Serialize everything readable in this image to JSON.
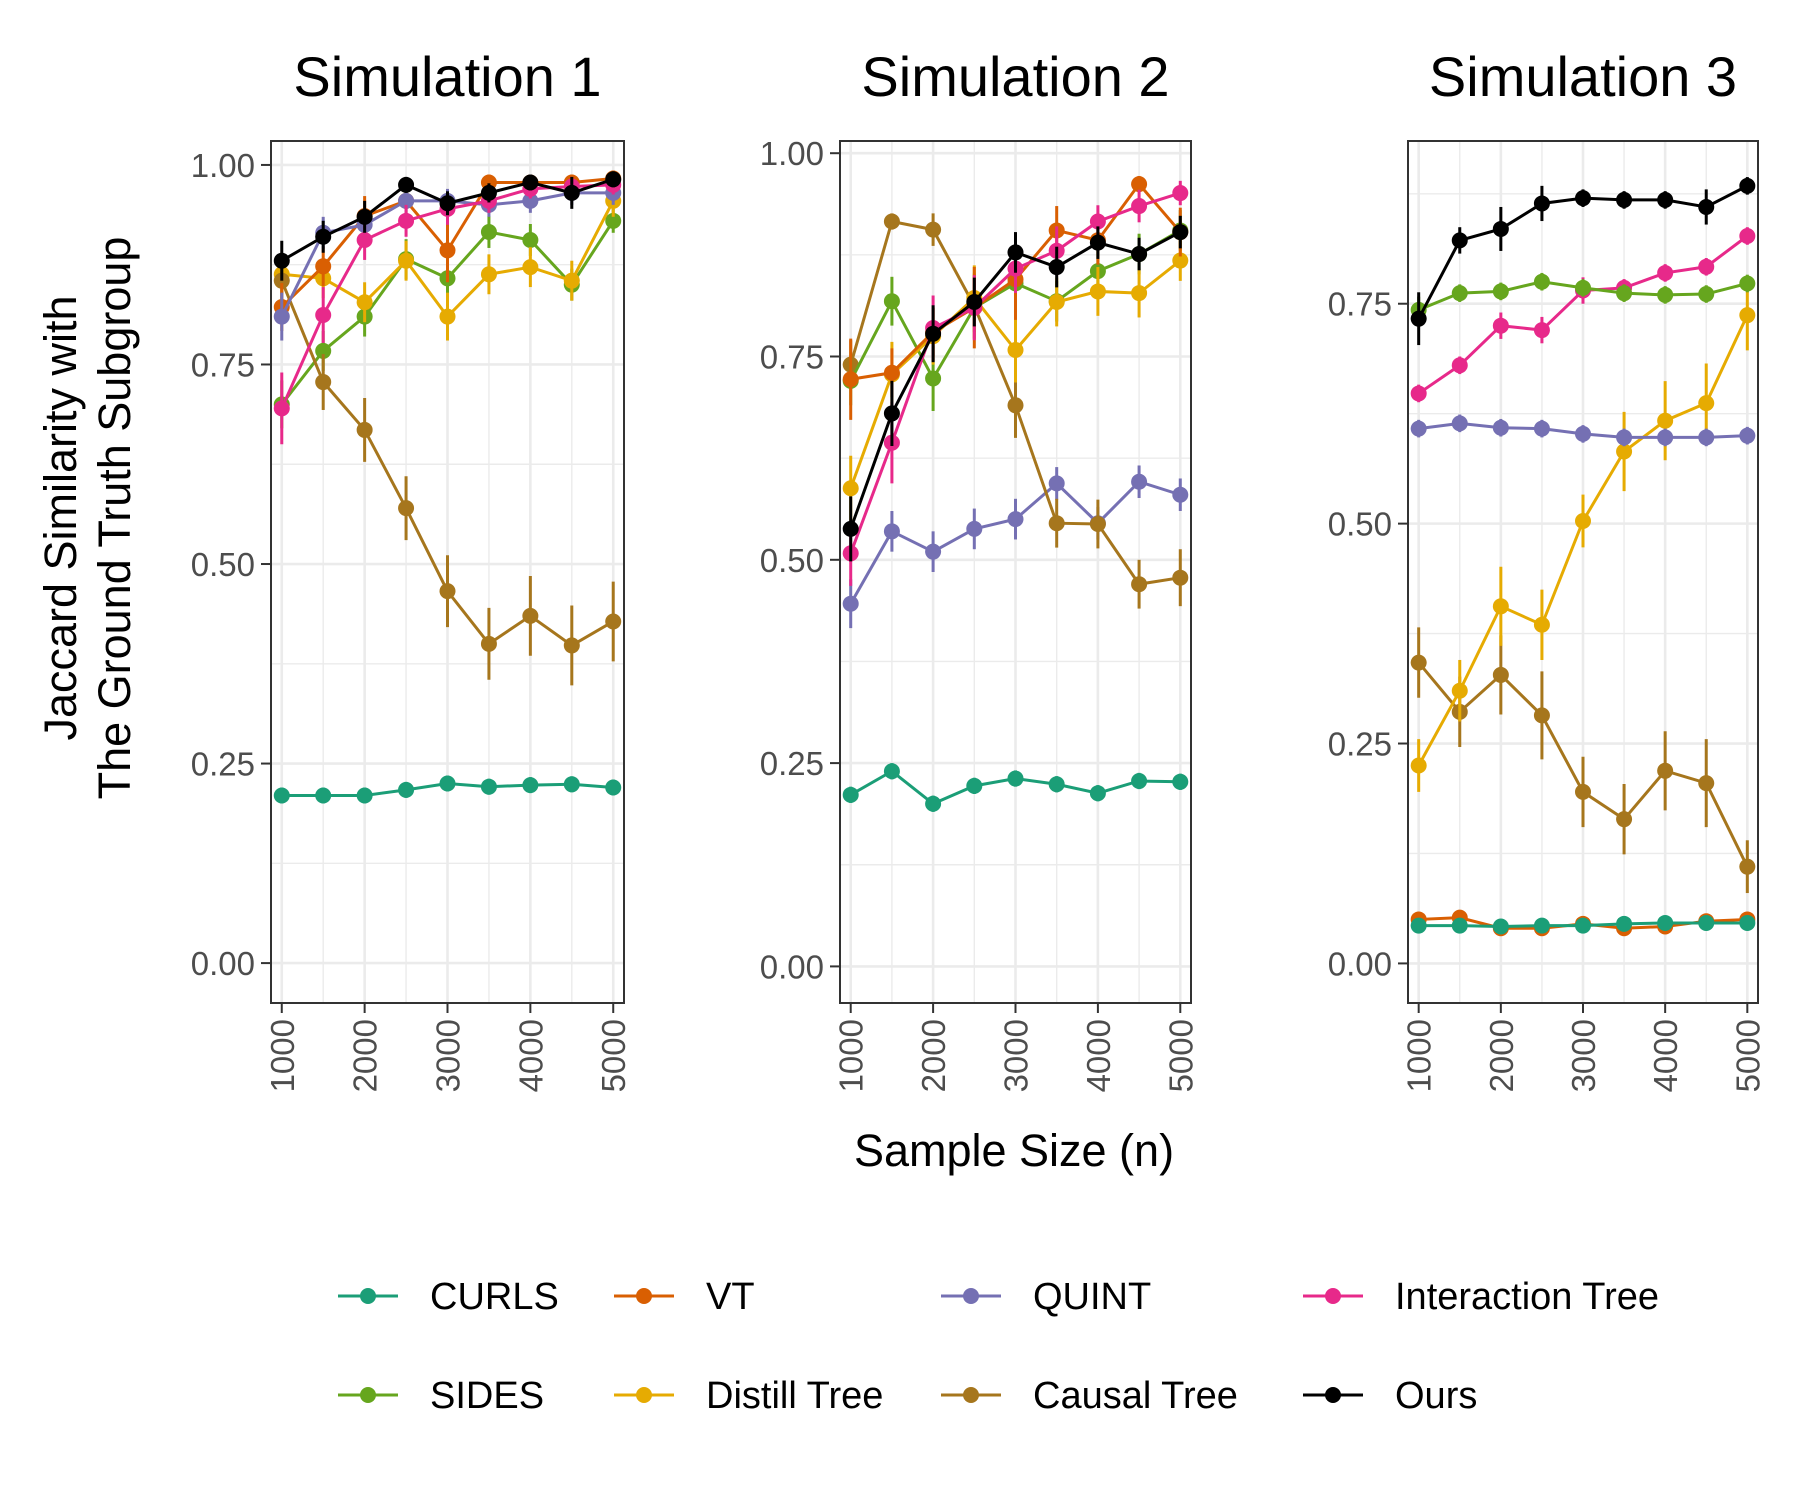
{
  "chart_data": {
    "type": "line",
    "x": [
      1000,
      1500,
      2000,
      2500,
      3000,
      3500,
      4000,
      4500,
      5000
    ],
    "x_tick_labels": [
      "1000",
      "2000",
      "3000",
      "4000",
      "5000"
    ],
    "xlabel": "Sample Size (n)",
    "ylabel_line1": "Jaccard Similarity with",
    "ylabel_line2": "The Ground Truth Subgroup",
    "colors": {
      "CURLS": "#1b9e77",
      "VT": "#d95f02",
      "QUINT": "#7570b3",
      "Interaction Tree": "#e7298a",
      "SIDES": "#66a61e",
      "Distill Tree": "#e6ab02",
      "Causal Tree": "#a6761d",
      "Ours": "#000000"
    },
    "legend": [
      "CURLS",
      "VT",
      "QUINT",
      "Interaction Tree",
      "SIDES",
      "Distill Tree",
      "Causal Tree",
      "Ours"
    ],
    "panels": [
      {
        "title": "Simulation 1",
        "ylim": [
          -0.05,
          1.03
        ],
        "y_ticks": [
          0.0,
          0.25,
          0.5,
          0.75,
          1.0
        ],
        "y_tick_labels": [
          "0.00",
          "0.25",
          "0.50",
          "0.75",
          "1.00"
        ],
        "series": [
          {
            "name": "CURLS",
            "values": [
              0.21,
              0.21,
              0.21,
              0.217,
              0.225,
              0.221,
              0.223,
              0.224,
              0.22
            ],
            "errors": [
              0.01,
              0.01,
              0.01,
              0.01,
              0.01,
              0.01,
              0.01,
              0.01,
              0.01
            ]
          },
          {
            "name": "SIDES",
            "values": [
              0.7,
              0.767,
              0.81,
              0.882,
              0.858,
              0.916,
              0.906,
              0.85,
              0.93
            ],
            "errors": [
              0.03,
              0.025,
              0.025,
              0.025,
              0.025,
              0.02,
              0.02,
              0.02,
              0.015
            ]
          },
          {
            "name": "Distill Tree",
            "values": [
              0.863,
              0.858,
              0.828,
              0.88,
              0.81,
              0.863,
              0.872,
              0.855,
              0.955
            ],
            "errors": [
              0.025,
              0.025,
              0.025,
              0.025,
              0.03,
              0.025,
              0.025,
              0.025,
              0.02
            ]
          },
          {
            "name": "Causal Tree",
            "values": [
              0.855,
              0.728,
              0.668,
              0.57,
              0.466,
              0.4,
              0.435,
              0.398,
              0.428
            ],
            "errors": [
              0.03,
              0.035,
              0.04,
              0.04,
              0.045,
              0.045,
              0.05,
              0.05,
              0.05
            ]
          },
          {
            "name": "VT",
            "values": [
              0.822,
              0.873,
              0.936,
              0.955,
              0.893,
              0.978,
              0.978,
              0.978,
              0.983
            ],
            "errors": [
              0.03,
              0.025,
              0.025,
              0.02,
              0.04,
              0.01,
              0.01,
              0.01,
              0.01
            ]
          },
          {
            "name": "QUINT",
            "values": [
              0.81,
              0.915,
              0.925,
              0.955,
              0.955,
              0.95,
              0.955,
              0.965,
              0.965
            ],
            "errors": [
              0.03,
              0.02,
              0.02,
              0.015,
              0.015,
              0.015,
              0.015,
              0.015,
              0.015
            ]
          },
          {
            "name": "Interaction Tree",
            "values": [
              0.695,
              0.812,
              0.906,
              0.93,
              0.945,
              0.955,
              0.97,
              0.973,
              0.975
            ],
            "errors": [
              0.045,
              0.035,
              0.025,
              0.02,
              0.02,
              0.015,
              0.012,
              0.012,
              0.012
            ]
          },
          {
            "name": "Ours",
            "values": [
              0.88,
              0.91,
              0.935,
              0.975,
              0.952,
              0.965,
              0.978,
              0.965,
              0.982
            ],
            "errors": [
              0.025,
              0.02,
              0.02,
              0.01,
              0.015,
              0.012,
              0.01,
              0.02,
              0.01
            ]
          }
        ]
      },
      {
        "title": "Simulation 2",
        "ylim": [
          -0.045,
          1.015
        ],
        "y_ticks": [
          0.0,
          0.25,
          0.5,
          0.75,
          1.0
        ],
        "y_tick_labels": [
          "0.00",
          "0.25",
          "0.50",
          "0.75",
          "1.00"
        ],
        "series": [
          {
            "name": "CURLS",
            "values": [
              0.211,
              0.24,
              0.2,
              0.222,
              0.231,
              0.224,
              0.213,
              0.228,
              0.227
            ],
            "errors": [
              0.01,
              0.01,
              0.01,
              0.01,
              0.01,
              0.01,
              0.01,
              0.01,
              0.01
            ]
          },
          {
            "name": "QUINT",
            "values": [
              0.446,
              0.535,
              0.51,
              0.538,
              0.55,
              0.594,
              0.545,
              0.596,
              0.58
            ],
            "errors": [
              0.03,
              0.025,
              0.025,
              0.025,
              0.025,
              0.02,
              0.02,
              0.02,
              0.02
            ]
          },
          {
            "name": "Causal Tree",
            "values": [
              0.74,
              0.916,
              0.906,
              0.812,
              0.69,
              0.545,
              0.544,
              0.47,
              0.478
            ],
            "errors": [
              0.03,
              0.01,
              0.02,
              0.04,
              0.04,
              0.03,
              0.03,
              0.03,
              0.035
            ]
          },
          {
            "name": "SIDES",
            "values": [
              0.72,
              0.818,
              0.723,
              0.81,
              0.84,
              0.818,
              0.855,
              0.876,
              0.905
            ],
            "errors": [
              0.03,
              0.03,
              0.04,
              0.03,
              0.03,
              0.025,
              0.025,
              0.025,
              0.025
            ]
          },
          {
            "name": "Distill Tree",
            "values": [
              0.588,
              0.728,
              0.775,
              0.822,
              0.758,
              0.817,
              0.83,
              0.828,
              0.868
            ],
            "errors": [
              0.04,
              0.04,
              0.035,
              0.04,
              0.04,
              0.03,
              0.03,
              0.03,
              0.025
            ]
          },
          {
            "name": "VT",
            "values": [
              0.722,
              0.73,
              0.78,
              0.81,
              0.845,
              0.905,
              0.893,
              0.962,
              0.903
            ],
            "errors": [
              0.05,
              0.03,
              0.03,
              0.05,
              0.05,
              0.03,
              0.03,
              0.01,
              0.03
            ]
          },
          {
            "name": "Interaction Tree",
            "values": [
              0.508,
              0.644,
              0.785,
              0.81,
              0.858,
              0.88,
              0.916,
              0.935,
              0.951
            ],
            "errors": [
              0.04,
              0.05,
              0.04,
              0.04,
              0.03,
              0.03,
              0.02,
              0.02,
              0.015
            ]
          },
          {
            "name": "Ours",
            "values": [
              0.538,
              0.68,
              0.778,
              0.817,
              0.878,
              0.86,
              0.89,
              0.876,
              0.903
            ],
            "errors": [
              0.04,
              0.04,
              0.035,
              0.03,
              0.025,
              0.025,
              0.02,
              0.02,
              0.02
            ]
          }
        ]
      },
      {
        "title": "Simulation 3",
        "ylim": [
          -0.045,
          0.935
        ],
        "y_ticks": [
          0.0,
          0.25,
          0.5,
          0.75
        ],
        "y_tick_labels": [
          "0.00",
          "0.25",
          "0.50",
          "0.75"
        ],
        "series": [
          {
            "name": "VT",
            "values": [
              0.05,
              0.052,
              0.04,
              0.04,
              0.045,
              0.04,
              0.042,
              0.048,
              0.05
            ],
            "errors": [
              0.005,
              0.005,
              0.005,
              0.005,
              0.005,
              0.005,
              0.005,
              0.005,
              0.005
            ]
          },
          {
            "name": "CURLS",
            "values": [
              0.043,
              0.043,
              0.042,
              0.043,
              0.043,
              0.045,
              0.046,
              0.046,
              0.046
            ],
            "errors": [
              0.005,
              0.005,
              0.005,
              0.005,
              0.005,
              0.005,
              0.005,
              0.005,
              0.005
            ]
          },
          {
            "name": "Causal Tree",
            "values": [
              0.342,
              0.286,
              0.328,
              0.282,
              0.195,
              0.164,
              0.219,
              0.205,
              0.11
            ],
            "errors": [
              0.04,
              0.04,
              0.045,
              0.05,
              0.04,
              0.04,
              0.045,
              0.05,
              0.03
            ]
          },
          {
            "name": "Distill Tree",
            "values": [
              0.225,
              0.31,
              0.406,
              0.385,
              0.503,
              0.582,
              0.617,
              0.637,
              0.737
            ],
            "errors": [
              0.03,
              0.035,
              0.045,
              0.04,
              0.03,
              0.045,
              0.045,
              0.045,
              0.04
            ]
          },
          {
            "name": "QUINT",
            "values": [
              0.608,
              0.614,
              0.609,
              0.608,
              0.602,
              0.598,
              0.598,
              0.598,
              0.6
            ],
            "errors": [
              0.01,
              0.01,
              0.01,
              0.01,
              0.01,
              0.01,
              0.01,
              0.01,
              0.01
            ]
          },
          {
            "name": "Interaction Tree",
            "values": [
              0.648,
              0.68,
              0.725,
              0.72,
              0.765,
              0.768,
              0.785,
              0.792,
              0.827
            ],
            "errors": [
              0.01,
              0.01,
              0.015,
              0.015,
              0.015,
              0.01,
              0.01,
              0.01,
              0.01
            ]
          },
          {
            "name": "SIDES",
            "values": [
              0.743,
              0.762,
              0.764,
              0.775,
              0.768,
              0.762,
              0.76,
              0.761,
              0.773
            ],
            "errors": [
              0.015,
              0.01,
              0.01,
              0.01,
              0.01,
              0.01,
              0.01,
              0.01,
              0.01
            ]
          },
          {
            "name": "Ours",
            "values": [
              0.733,
              0.822,
              0.835,
              0.864,
              0.87,
              0.868,
              0.868,
              0.86,
              0.884
            ],
            "errors": [
              0.03,
              0.015,
              0.025,
              0.02,
              0.01,
              0.01,
              0.01,
              0.02,
              0.01
            ]
          }
        ]
      }
    ]
  }
}
